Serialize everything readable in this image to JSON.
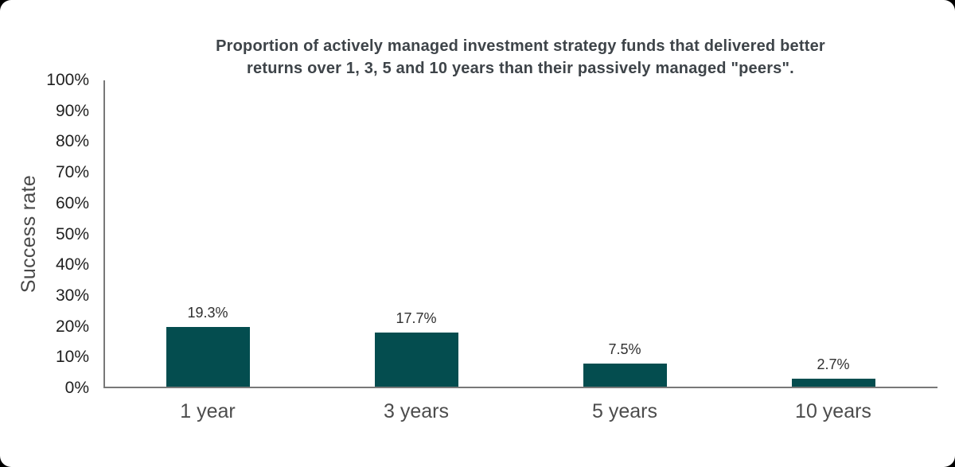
{
  "chart_data": {
    "type": "bar",
    "title": "Proportion of actively managed investment strategy funds that delivered better returns over 1, 3, 5 and 10 years than their passively managed \"peers\".",
    "title_lines": [
      "Proportion of actively managed investment strategy funds that delivered better",
      "returns over 1, 3, 5 and 10 years than their passively managed \"peers\"."
    ],
    "ylabel": "Success rate",
    "xlabel": "",
    "categories": [
      "1 year",
      "3 years",
      "5 years",
      "10 years"
    ],
    "values": [
      19.3,
      17.7,
      7.5,
      2.7
    ],
    "value_labels": [
      "19.3%",
      "17.7%",
      "7.5%",
      "2.7%"
    ],
    "ylim": [
      0,
      100
    ],
    "y_tick_values": [
      0,
      10,
      20,
      30,
      40,
      50,
      60,
      70,
      80,
      90,
      100
    ],
    "y_tick_labels": [
      "0%",
      "10%",
      "20%",
      "30%",
      "40%",
      "50%",
      "60%",
      "70%",
      "80%",
      "90%",
      "100%"
    ],
    "grid": false,
    "legend": "none",
    "bar_color": "#044d4f",
    "axis_color": "#787878",
    "title_color": "#3e4449",
    "background_color": "#ffffff"
  }
}
